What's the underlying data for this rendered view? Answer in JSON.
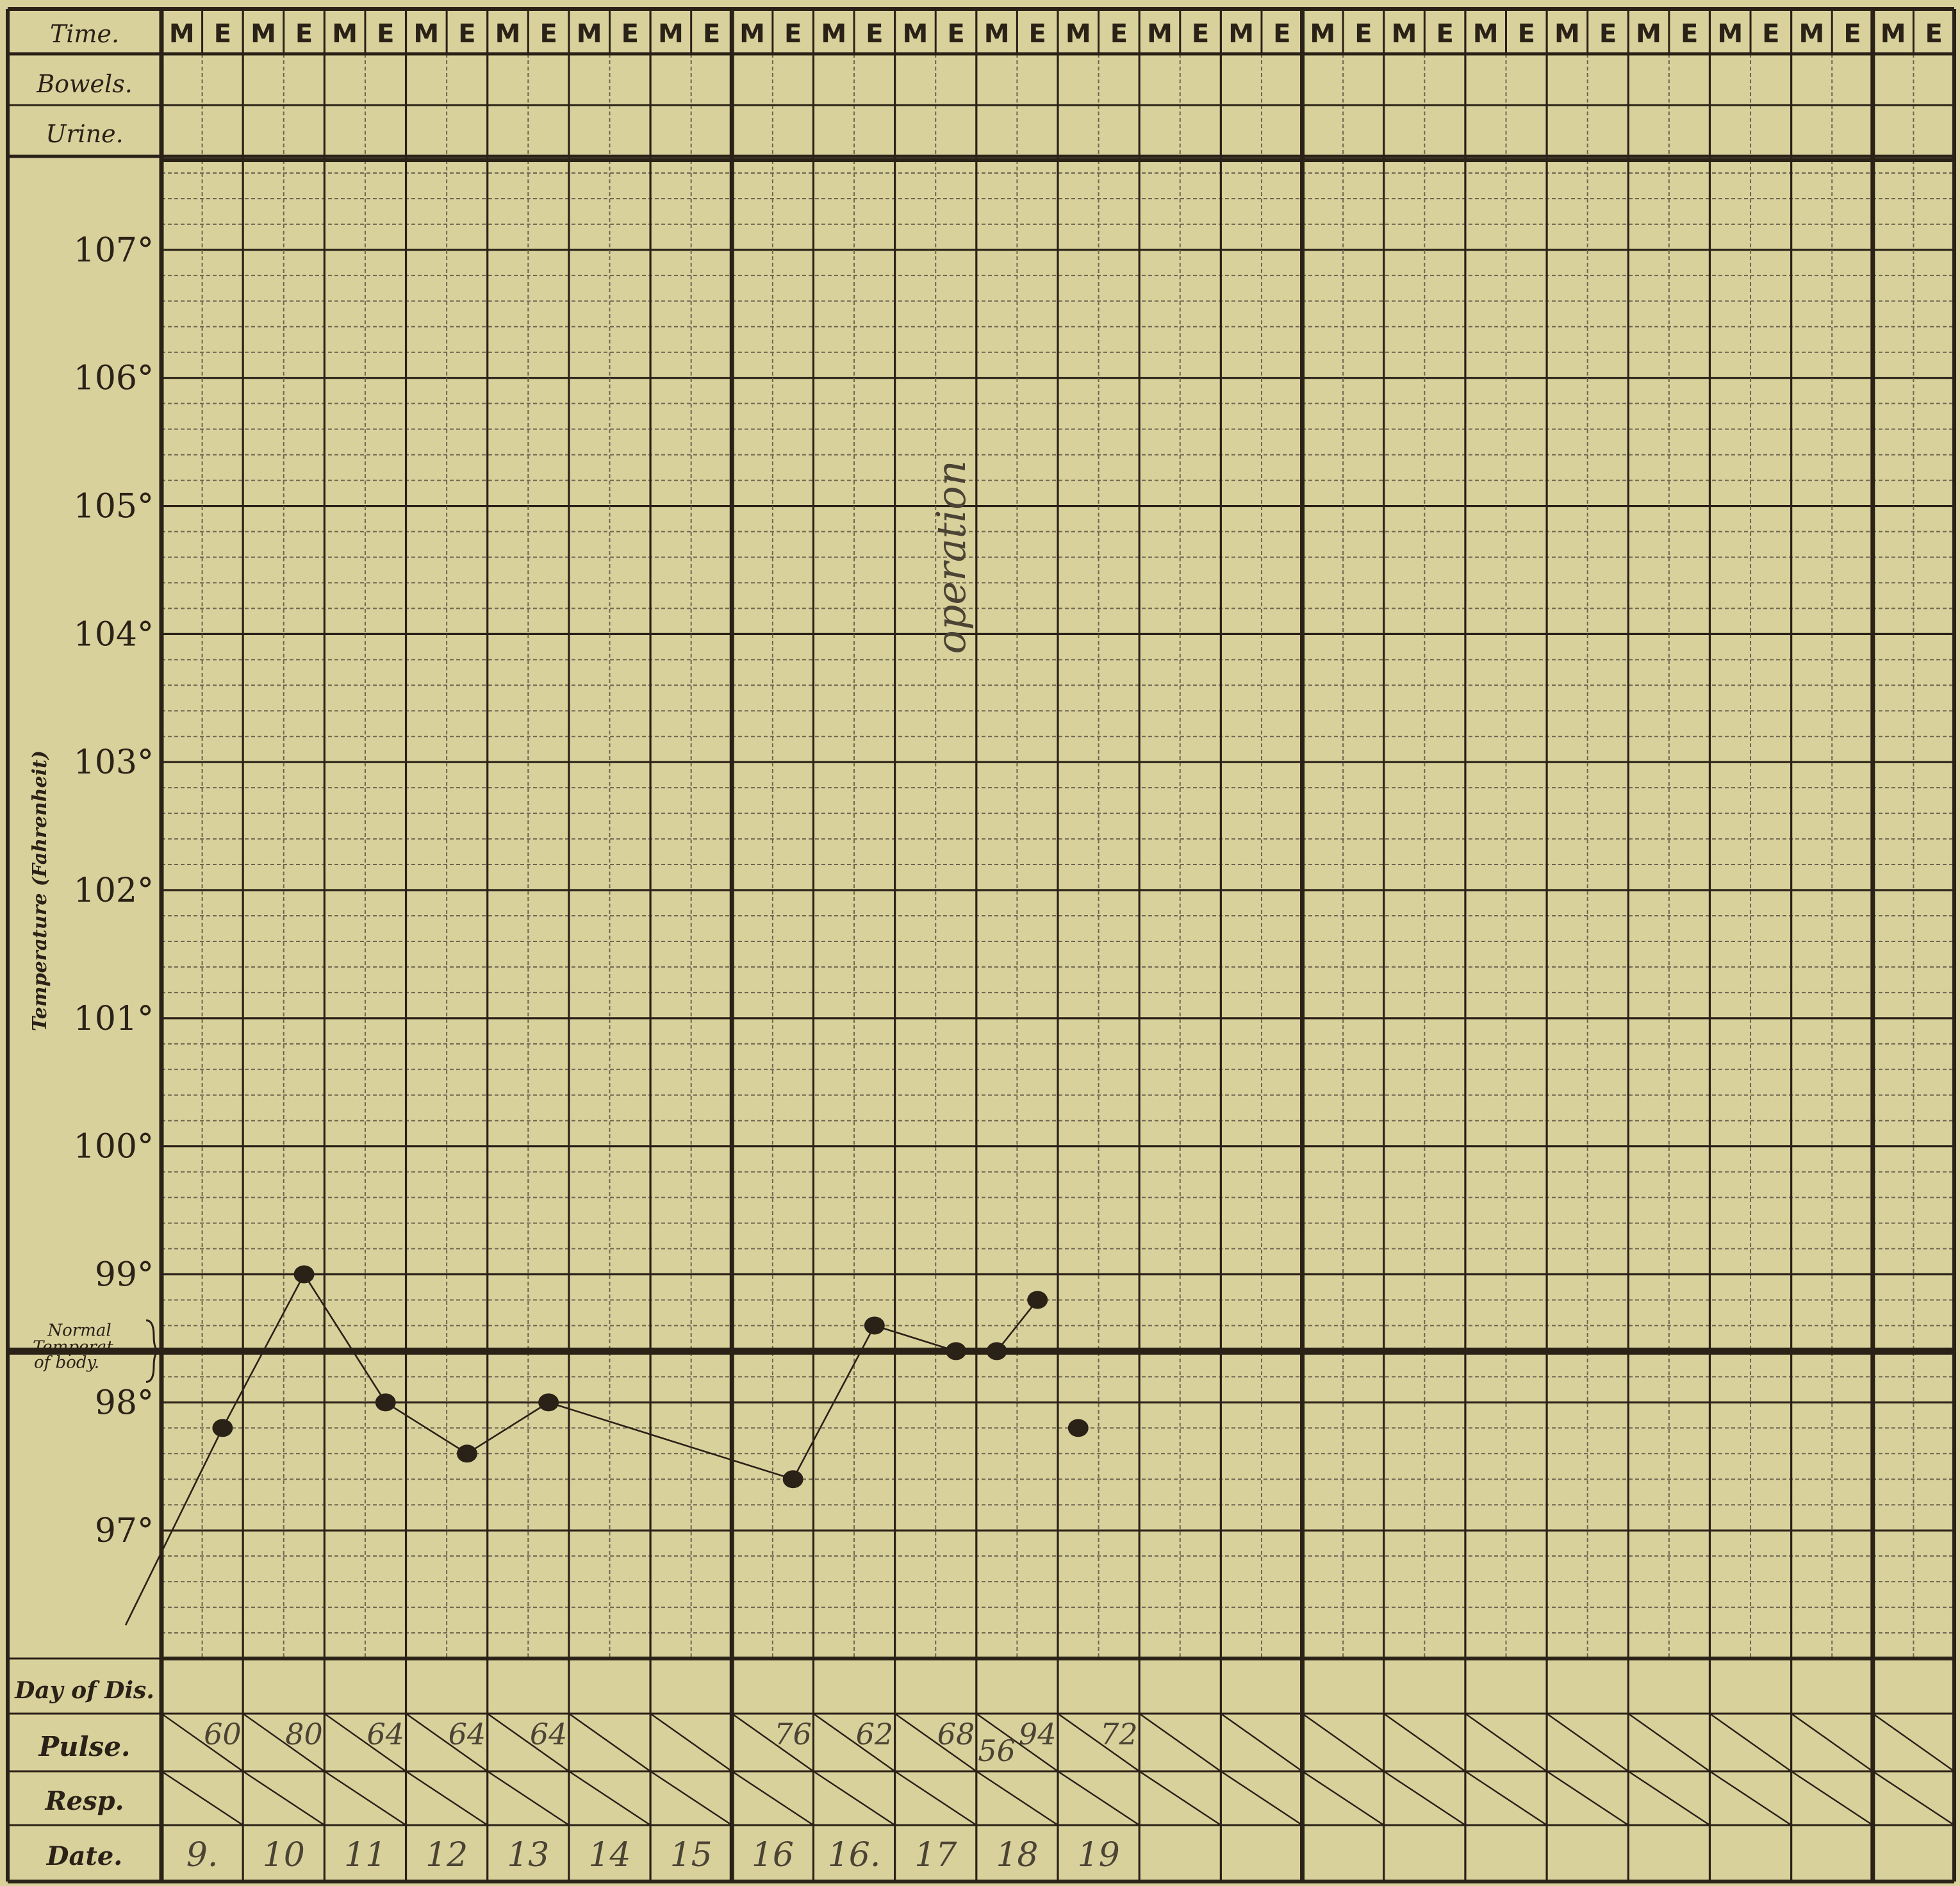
{
  "header": {
    "time_label": "Time.",
    "bowels_label": "Bowels.",
    "urine_label": "Urine.",
    "slot_letters": [
      "M",
      "E",
      "M",
      "E",
      "M",
      "E",
      "M",
      "E",
      "M",
      "E",
      "M",
      "E",
      "M",
      "E",
      "M",
      "E",
      "M",
      "E",
      "M",
      "E",
      "M",
      "E",
      "M",
      "E",
      "M",
      "E",
      "M",
      "E",
      "M",
      "E",
      "M",
      "E",
      "M",
      "E",
      "M",
      "E",
      "M",
      "E",
      "M",
      "E",
      "M",
      "E",
      "M",
      "E"
    ]
  },
  "footer": {
    "day_label": "Day of Dis.",
    "pulse_label": "Pulse.",
    "resp_label": "Resp.",
    "date_label": "Date."
  },
  "normal_label": [
    "Normal",
    "Temperat.",
    "of body."
  ],
  "annotation": "operation",
  "pulse_values": [
    {
      "slot": 1,
      "text": "60"
    },
    {
      "slot": 3,
      "text": "80"
    },
    {
      "slot": 5,
      "text": "64"
    },
    {
      "slot": 7,
      "text": "64"
    },
    {
      "slot": 9,
      "text": "64"
    },
    {
      "slot": 15,
      "text": "76"
    },
    {
      "slot": 17,
      "text": "62"
    },
    {
      "slot": 19,
      "text": "68"
    },
    {
      "slot": 20,
      "text": "56"
    },
    {
      "slot": 21,
      "text": "94"
    },
    {
      "slot": 23,
      "text": "72"
    }
  ],
  "dates": [
    "9.",
    "10",
    "11",
    "12",
    "13",
    "14",
    "15",
    "16",
    "16.",
    "17",
    "18",
    "19",
    "",
    "",
    "",
    "",
    "",
    "",
    "",
    "",
    "",
    ""
  ],
  "chart_data": {
    "type": "line",
    "ylabel": "Temperature (Fahrenheit)",
    "ylim": [
      96.0,
      107.7
    ],
    "yticks": [
      {
        "value": 107,
        "label": "107°"
      },
      {
        "value": 106,
        "label": "106°"
      },
      {
        "value": 105,
        "label": "105°"
      },
      {
        "value": 104,
        "label": "104°"
      },
      {
        "value": 103,
        "label": "103°"
      },
      {
        "value": 102,
        "label": "102°"
      },
      {
        "value": 101,
        "label": "101°"
      },
      {
        "value": 100,
        "label": "100°"
      },
      {
        "value": 99,
        "label": "99°"
      },
      {
        "value": 98,
        "label": "98°"
      },
      {
        "value": 97,
        "label": "97°"
      }
    ],
    "normal_temperature": 98.4,
    "slots": 44,
    "series": [
      {
        "points": [
          {
            "slot": 1,
            "value": 97.8
          },
          {
            "slot": 3,
            "value": 99.0
          },
          {
            "slot": 5,
            "value": 98.0
          },
          {
            "slot": 7,
            "value": 97.6
          },
          {
            "slot": 9,
            "value": 98.0
          },
          {
            "slot": 15,
            "value": 97.4
          },
          {
            "slot": 17,
            "value": 98.6
          },
          {
            "slot": 19,
            "value": 98.4
          },
          {
            "slot": 20,
            "value": 98.4
          },
          {
            "slot": 21,
            "value": 98.8
          },
          {
            "slot": 22,
            "value": 97.8
          }
        ],
        "connected_through_slot": 21
      }
    ]
  },
  "colors": {
    "paper": "#d9d19c",
    "ink": "#2a2117",
    "grid": "#6e6650",
    "pencil": "#4b4434"
  }
}
